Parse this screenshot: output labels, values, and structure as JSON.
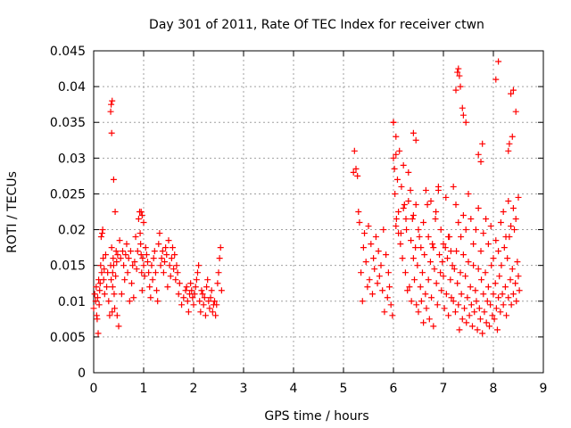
{
  "chart_data": {
    "type": "scatter",
    "title": "Day 301 of 2011, Rate Of TEC Index for receiver ctwn",
    "xlabel": "GPS time / hours",
    "ylabel": "ROTI / TECUs",
    "xlim": [
      0,
      9
    ],
    "ylim": [
      0,
      0.045
    ],
    "xticks": [
      "0",
      "1",
      "2",
      "3",
      "4",
      "5",
      "6",
      "7",
      "8",
      "9"
    ],
    "yticks": [
      "0",
      "0.005",
      "0.01",
      "0.015",
      "0.02",
      "0.025",
      "0.03",
      "0.035",
      "0.04",
      "0.045"
    ],
    "grid": true,
    "marker": "plus",
    "color": "#ff0000",
    "series": [
      {
        "name": "ROTI",
        "x": [
          0.0,
          0.02,
          0.04,
          0.05,
          0.06,
          0.07,
          0.08,
          0.09,
          0.1,
          0.11,
          0.12,
          0.13,
          0.14,
          0.15,
          0.16,
          0.17,
          0.18,
          0.19,
          0.2,
          0.21,
          0.22,
          0.24,
          0.26,
          0.28,
          0.3,
          0.32,
          0.34,
          0.35,
          0.36,
          0.37,
          0.38,
          0.38,
          0.39,
          0.4,
          0.41,
          0.42,
          0.43,
          0.44,
          0.45,
          0.46,
          0.47,
          0.48,
          0.5,
          0.52,
          0.54,
          0.56,
          0.58,
          0.6,
          0.62,
          0.64,
          0.66,
          0.68,
          0.7,
          0.72,
          0.74,
          0.76,
          0.78,
          0.8,
          0.82,
          0.84,
          0.86,
          0.88,
          0.9,
          0.92,
          0.93,
          0.94,
          0.95,
          0.96,
          0.97,
          0.98,
          1.0,
          1.02,
          1.04,
          1.06,
          1.08,
          1.1,
          1.12,
          1.14,
          1.16,
          1.18,
          1.2,
          1.22,
          1.24,
          1.26,
          1.28,
          1.3,
          1.32,
          1.34,
          1.36,
          1.38,
          1.4,
          1.42,
          1.44,
          1.46,
          1.48,
          1.5,
          1.52,
          1.54,
          1.56,
          1.58,
          1.6,
          1.62,
          1.64,
          1.66,
          1.68,
          1.7,
          1.72,
          1.76,
          1.8,
          1.84,
          1.86,
          1.88,
          1.9,
          1.92,
          1.94,
          1.96,
          1.98,
          2.0,
          2.02,
          2.04,
          2.06,
          2.08,
          2.1,
          2.12,
          2.14,
          2.16,
          2.18,
          2.2,
          2.22,
          2.24,
          2.26,
          2.28,
          2.3,
          2.32,
          2.34,
          2.36,
          2.38,
          2.4,
          2.42,
          2.44,
          2.46,
          2.48,
          2.5,
          2.52,
          2.54,
          2.56,
          5.2,
          5.22,
          5.25,
          5.28,
          5.3,
          5.32,
          5.35,
          5.38,
          5.4,
          5.42,
          5.45,
          5.48,
          5.5,
          5.52,
          5.55,
          5.58,
          5.6,
          5.62,
          5.65,
          5.68,
          5.7,
          5.72,
          5.75,
          5.78,
          5.8,
          5.82,
          5.85,
          5.88,
          5.9,
          5.92,
          5.95,
          5.98,
          6.0,
          6.0,
          6.02,
          6.03,
          6.05,
          6.06,
          6.08,
          6.1,
          6.12,
          6.14,
          6.16,
          6.18,
          6.2,
          6.22,
          6.24,
          6.26,
          6.28,
          6.3,
          6.32,
          6.34,
          6.36,
          6.38,
          6.4,
          6.42,
          6.44,
          6.46,
          6.48,
          6.5,
          6.52,
          6.54,
          6.56,
          6.58,
          6.6,
          6.62,
          6.64,
          6.66,
          6.68,
          6.7,
          6.72,
          6.74,
          6.76,
          6.78,
          6.8,
          6.82,
          6.84,
          6.86,
          6.88,
          6.9,
          6.92,
          6.94,
          6.96,
          6.98,
          7.0,
          7.02,
          7.04,
          7.06,
          7.08,
          7.1,
          7.12,
          7.14,
          7.16,
          7.18,
          7.2,
          7.22,
          7.24,
          7.26,
          7.28,
          7.3,
          7.32,
          7.34,
          7.36,
          7.38,
          7.4,
          7.42,
          7.44,
          7.46,
          7.48,
          7.5,
          7.52,
          7.54,
          7.56,
          7.58,
          7.6,
          7.62,
          7.64,
          7.66,
          7.68,
          7.7,
          7.72,
          7.74,
          7.76,
          7.78,
          7.8,
          7.82,
          7.84,
          7.86,
          7.88,
          7.9,
          7.92,
          7.94,
          7.96,
          7.98,
          8.0,
          8.02,
          8.04,
          8.06,
          8.08,
          8.1,
          8.12,
          8.14,
          8.16,
          8.18,
          8.2,
          8.22,
          8.24,
          8.26,
          8.28,
          8.3,
          8.32,
          8.34,
          8.36,
          8.38,
          8.4,
          8.42,
          8.44,
          8.46,
          8.48,
          8.5,
          8.52,
          6.05,
          6.1,
          6.15,
          6.2,
          6.25,
          6.3,
          6.35,
          6.4,
          6.45,
          6.5,
          6.55,
          6.6,
          6.65,
          6.7,
          6.75,
          6.8,
          6.85,
          6.9,
          6.95,
          7.0,
          7.05,
          7.1,
          7.15,
          7.2,
          7.25,
          7.3,
          7.35,
          7.4,
          7.45,
          7.5,
          7.55,
          7.6,
          7.65,
          7.7,
          7.75,
          7.8,
          7.85,
          7.9,
          7.95,
          8.0,
          8.05,
          8.1,
          8.15,
          8.2,
          8.25,
          8.3,
          8.35,
          8.4,
          8.45,
          8.5,
          7.28,
          7.3,
          7.32,
          7.34,
          7.25,
          7.38,
          7.4,
          7.45,
          8.05,
          8.1,
          8.35,
          8.4,
          8.45,
          6.0,
          6.05,
          6.4,
          6.45,
          8.3,
          8.32,
          8.38,
          7.7,
          7.75,
          7.78,
          0.35,
          0.37,
          0.36,
          0.34,
          0.4,
          0.95,
          0.97,
          1.0
        ],
        "y": [
          0.009,
          0.011,
          0.01,
          0.012,
          0.008,
          0.0075,
          0.0105,
          0.0055,
          0.013,
          0.0095,
          0.0115,
          0.0125,
          0.015,
          0.019,
          0.014,
          0.0195,
          0.02,
          0.016,
          0.013,
          0.0145,
          0.011,
          0.0165,
          0.012,
          0.014,
          0.01,
          0.008,
          0.015,
          0.013,
          0.0175,
          0.0085,
          0.014,
          0.012,
          0.016,
          0.015,
          0.011,
          0.009,
          0.0225,
          0.0135,
          0.017,
          0.0155,
          0.008,
          0.0165,
          0.0065,
          0.0185,
          0.016,
          0.011,
          0.017,
          0.015,
          0.013,
          0.0165,
          0.018,
          0.014,
          0.016,
          0.01,
          0.017,
          0.0125,
          0.015,
          0.0105,
          0.0155,
          0.019,
          0.0145,
          0.017,
          0.0215,
          0.0225,
          0.0195,
          0.018,
          0.0165,
          0.014,
          0.0115,
          0.016,
          0.015,
          0.0135,
          0.0175,
          0.0165,
          0.0155,
          0.014,
          0.012,
          0.0105,
          0.015,
          0.013,
          0.016,
          0.017,
          0.014,
          0.0115,
          0.01,
          0.018,
          0.0195,
          0.015,
          0.016,
          0.017,
          0.014,
          0.0155,
          0.0175,
          0.0165,
          0.012,
          0.0185,
          0.015,
          0.0135,
          0.016,
          0.0175,
          0.0145,
          0.0165,
          0.013,
          0.015,
          0.014,
          0.011,
          0.0125,
          0.0095,
          0.0105,
          0.0115,
          0.012,
          0.01,
          0.0085,
          0.011,
          0.0125,
          0.0115,
          0.0105,
          0.0095,
          0.011,
          0.012,
          0.013,
          0.014,
          0.015,
          0.01,
          0.0085,
          0.0115,
          0.011,
          0.0095,
          0.0105,
          0.008,
          0.012,
          0.013,
          0.01,
          0.009,
          0.0105,
          0.0115,
          0.0085,
          0.0095,
          0.01,
          0.008,
          0.0095,
          0.0125,
          0.014,
          0.016,
          0.0175,
          0.0115,
          0.028,
          0.031,
          0.0285,
          0.0275,
          0.0225,
          0.021,
          0.014,
          0.01,
          0.0175,
          0.0195,
          0.0155,
          0.012,
          0.0205,
          0.013,
          0.018,
          0.011,
          0.016,
          0.0145,
          0.019,
          0.0125,
          0.017,
          0.0135,
          0.015,
          0.0115,
          0.02,
          0.0085,
          0.0165,
          0.0105,
          0.014,
          0.012,
          0.0095,
          0.008,
          0.03,
          0.035,
          0.0285,
          0.025,
          0.033,
          0.0215,
          0.027,
          0.0195,
          0.031,
          0.018,
          0.026,
          0.016,
          0.029,
          0.0235,
          0.014,
          0.02,
          0.0115,
          0.028,
          0.012,
          0.0255,
          0.01,
          0.0215,
          0.016,
          0.013,
          0.0175,
          0.0095,
          0.015,
          0.0085,
          0.019,
          0.012,
          0.01,
          0.014,
          0.007,
          0.0165,
          0.011,
          0.009,
          0.0235,
          0.013,
          0.0075,
          0.0155,
          0.0105,
          0.018,
          0.0065,
          0.0145,
          0.0215,
          0.0125,
          0.0095,
          0.026,
          0.0165,
          0.014,
          0.0115,
          0.0155,
          0.0135,
          0.009,
          0.0175,
          0.011,
          0.016,
          0.008,
          0.019,
          0.013,
          0.0105,
          0.015,
          0.01,
          0.0145,
          0.0085,
          0.017,
          0.0125,
          0.0095,
          0.006,
          0.014,
          0.011,
          0.0075,
          0.0165,
          0.009,
          0.0135,
          0.007,
          0.0105,
          0.0155,
          0.008,
          0.012,
          0.0095,
          0.0065,
          0.015,
          0.0085,
          0.0115,
          0.01,
          0.006,
          0.0145,
          0.009,
          0.0075,
          0.013,
          0.0055,
          0.011,
          0.0085,
          0.014,
          0.007,
          0.01,
          0.012,
          0.0065,
          0.0095,
          0.015,
          0.008,
          0.011,
          0.0075,
          0.0125,
          0.009,
          0.006,
          0.0105,
          0.0135,
          0.0085,
          0.015,
          0.011,
          0.0095,
          0.0175,
          0.012,
          0.008,
          0.016,
          0.0105,
          0.019,
          0.013,
          0.0095,
          0.0145,
          0.011,
          0.02,
          0.0125,
          0.01,
          0.0155,
          0.0135,
          0.0115,
          0.0205,
          0.0225,
          0.0195,
          0.023,
          0.0215,
          0.024,
          0.0185,
          0.022,
          0.0235,
          0.02,
          0.0175,
          0.021,
          0.0255,
          0.019,
          0.024,
          0.0175,
          0.0225,
          0.0255,
          0.02,
          0.018,
          0.0245,
          0.019,
          0.017,
          0.026,
          0.0235,
          0.021,
          0.019,
          0.022,
          0.02,
          0.025,
          0.0215,
          0.018,
          0.02,
          0.023,
          0.017,
          0.0195,
          0.0215,
          0.018,
          0.0205,
          0.016,
          0.0185,
          0.017,
          0.021,
          0.0225,
          0.019,
          0.024,
          0.0205,
          0.023,
          0.0215,
          0.0245,
          0.042,
          0.0425,
          0.0415,
          0.04,
          0.0395,
          0.037,
          0.036,
          0.035,
          0.041,
          0.0435,
          0.039,
          0.0395,
          0.0365,
          0.035,
          0.0305,
          0.0335,
          0.0325,
          0.031,
          0.032,
          0.033,
          0.0305,
          0.0295,
          0.032,
          0.0375,
          0.038,
          0.0335,
          0.0365,
          0.027,
          0.0225,
          0.022,
          0.021
        ]
      }
    ]
  }
}
